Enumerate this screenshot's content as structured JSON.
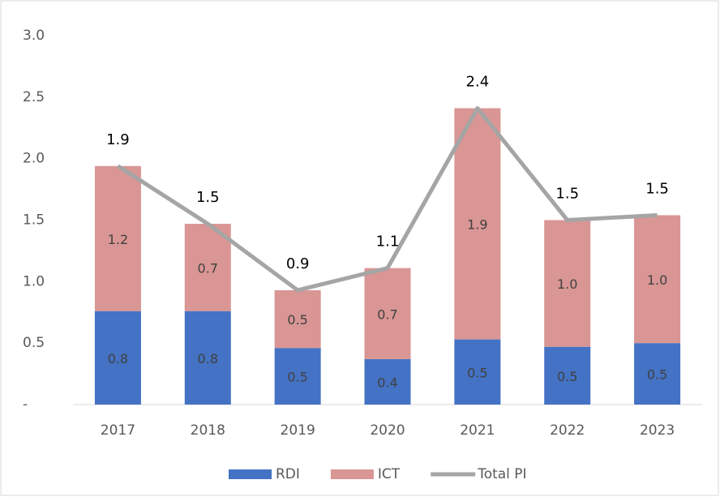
{
  "chart_data": {
    "type": "bar",
    "stacked": true,
    "categories": [
      "2017",
      "2018",
      "2019",
      "2020",
      "2021",
      "2022",
      "2023"
    ],
    "series": [
      {
        "name": "RDI",
        "color": "#4472c4",
        "values": [
          0.76,
          0.76,
          0.46,
          0.37,
          0.53,
          0.47,
          0.5
        ],
        "value_labels": [
          "0.8",
          "0.8",
          "0.5",
          "0.4",
          "0.5",
          "0.5",
          "0.5"
        ]
      },
      {
        "name": "ICT",
        "color": "#d99694",
        "values": [
          1.18,
          0.71,
          0.47,
          0.74,
          1.88,
          1.03,
          1.04
        ],
        "value_labels": [
          "1.2",
          "0.7",
          "0.5",
          "0.7",
          "1.9",
          "1.0",
          "1.0"
        ]
      },
      {
        "name": "Total PI",
        "type": "line",
        "color": "#a5a5a5",
        "values": [
          1.94,
          1.47,
          0.93,
          1.11,
          2.41,
          1.5,
          1.54
        ],
        "value_labels": [
          "1.9",
          "1.5",
          "0.9",
          "1.1",
          "2.4",
          "1.5",
          "1.5"
        ]
      }
    ],
    "ylim": [
      0,
      3
    ],
    "yticks": [
      {
        "value": 0,
        "label": "-"
      },
      0.5,
      {
        "value": 1,
        "label": "1.0"
      },
      1.5,
      {
        "value": 2,
        "label": "2.0"
      },
      2.5,
      {
        "value": 3,
        "label": "3.0"
      }
    ],
    "grid": false,
    "legend": "bottom"
  }
}
